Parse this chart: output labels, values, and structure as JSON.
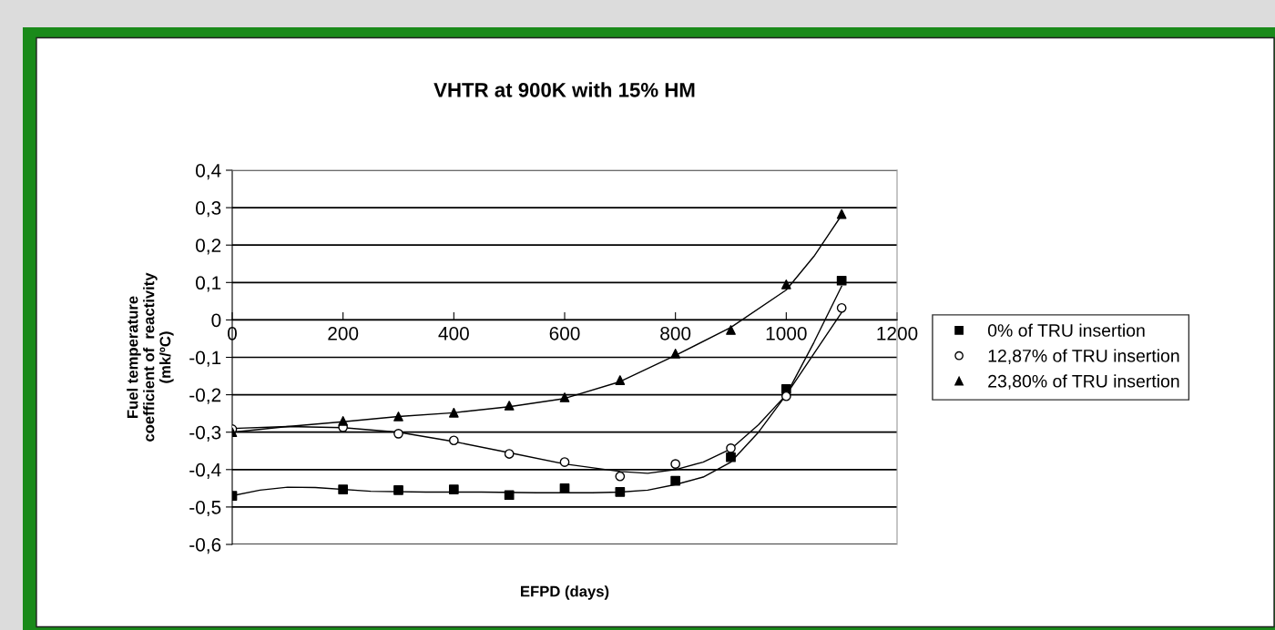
{
  "chart_data": {
    "type": "scatter",
    "title": "VHTR at 900K with 15% HM",
    "xlabel": "EFPD (days)",
    "ylabel": "Fuel temperature\ncoefficient of  reactivity\n(mk/ºC)",
    "x": [
      0,
      200,
      300,
      400,
      500,
      600,
      700,
      800,
      900,
      1000,
      1100
    ],
    "series": [
      {
        "name": "0% of TRU insertion",
        "color": "#000000",
        "marker": "square",
        "values": [
          -0.47,
          -0.453,
          -0.455,
          -0.453,
          -0.468,
          -0.45,
          -0.46,
          -0.43,
          -0.367,
          -0.185,
          0.105
        ]
      },
      {
        "name": "12,87% of TRU insertion",
        "color": "#000000",
        "marker": "circle",
        "values": [
          -0.292,
          -0.287,
          -0.304,
          -0.322,
          -0.358,
          -0.38,
          -0.418,
          -0.385,
          -0.343,
          -0.204,
          0.032
        ]
      },
      {
        "name": "23,80% of TRU insertion",
        "color": "#000000",
        "marker": "triangle",
        "values": [
          -0.3,
          -0.27,
          -0.258,
          -0.248,
          -0.229,
          -0.207,
          -0.161,
          -0.09,
          -0.027,
          0.095,
          0.283
        ]
      },
      {
        "type": "line",
        "color": "#000000",
        "marker": "none",
        "x": [
          0,
          50,
          100,
          150,
          250,
          350,
          450,
          550,
          650,
          700,
          750,
          800,
          850,
          900,
          950,
          1000,
          1050,
          1100
        ],
        "values": [
          -0.47,
          -0.455,
          -0.447,
          -0.448,
          -0.458,
          -0.46,
          -0.46,
          -0.462,
          -0.462,
          -0.46,
          -0.455,
          -0.44,
          -0.42,
          -0.38,
          -0.3,
          -0.2,
          -0.06,
          0.09
        ]
      },
      {
        "type": "line",
        "color": "#000000",
        "marker": "none",
        "x": [
          0,
          100,
          200,
          300,
          400,
          500,
          600,
          700,
          750,
          800,
          850,
          900,
          950,
          1000,
          1050,
          1100
        ],
        "values": [
          -0.29,
          -0.285,
          -0.288,
          -0.3,
          -0.325,
          -0.355,
          -0.385,
          -0.405,
          -0.41,
          -0.4,
          -0.38,
          -0.345,
          -0.28,
          -0.2,
          -0.09,
          0.02
        ]
      },
      {
        "type": "line",
        "color": "#000000",
        "marker": "none",
        "x": [
          0,
          100,
          200,
          300,
          400,
          500,
          600,
          700,
          800,
          900,
          1000,
          1050,
          1100
        ],
        "values": [
          -0.3,
          -0.285,
          -0.272,
          -0.258,
          -0.248,
          -0.232,
          -0.21,
          -0.165,
          -0.095,
          -0.02,
          0.08,
          0.17,
          0.28
        ]
      }
    ],
    "xlim": [
      0,
      1200
    ],
    "xticks": [
      0,
      200,
      400,
      600,
      800,
      1000,
      1200
    ],
    "ylim": [
      -0.6,
      0.4
    ],
    "yticks": [
      {
        "value": 0.4,
        "label": "0,4"
      },
      {
        "value": 0.3,
        "label": "0,3"
      },
      {
        "value": 0.2,
        "label": "0,2"
      },
      {
        "value": 0.1,
        "label": "0,1"
      },
      0,
      {
        "value": -0.1,
        "label": "-0,1"
      },
      {
        "value": -0.2,
        "label": "-0,2"
      },
      {
        "value": -0.3,
        "label": "-0,3"
      },
      {
        "value": -0.4,
        "label": "-0,4"
      },
      {
        "value": -0.5,
        "label": "-0,5"
      },
      {
        "value": -0.6,
        "label": "-0,6"
      }
    ],
    "grid": "y",
    "legend": "right"
  }
}
